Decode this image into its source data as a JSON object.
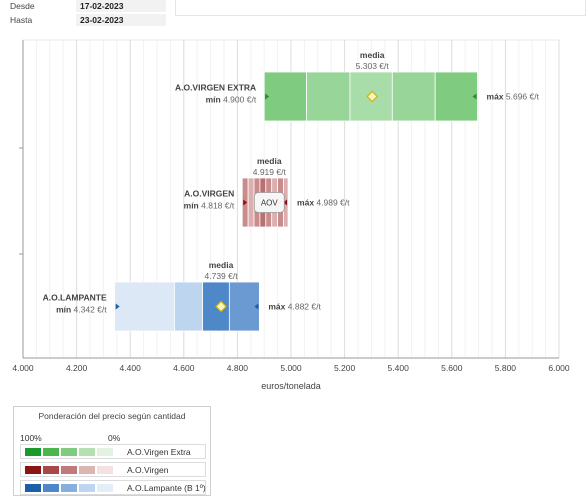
{
  "dates": {
    "from_label": "Desde",
    "from_value": "17-02-2023",
    "to_label": "Hasta",
    "to_value": "23-02-2023"
  },
  "chart_data": {
    "type": "bar",
    "orientation": "horizontal-range",
    "xlabel": "euros/tonelada",
    "xlim": [
      4000,
      6000
    ],
    "xticks": [
      "4.000",
      "4.200",
      "4.400",
      "4.600",
      "4.800",
      "5.000",
      "5.200",
      "5.400",
      "5.600",
      "5.800",
      "6.000"
    ],
    "grid": true,
    "series": [
      {
        "name": "A.O.VIRGEN EXTRA",
        "min": 4900,
        "max": 5696,
        "mean": 5303,
        "min_text": "4.900 €/t",
        "max_text": "5.696 €/t",
        "mean_text": "5.303 €/t",
        "segments": [
          4900,
          5058,
          5220,
          5378,
          5538,
          5696
        ],
        "colors": [
          "#7fcb7f",
          "#98d598",
          "#a8dca8",
          "#98d598",
          "#7fcb7f"
        ],
        "marker": "diamond",
        "badge": ""
      },
      {
        "name": "A.O.VIRGEN",
        "min": 4818,
        "max": 4989,
        "mean": 4919,
        "min_text": "4.818 €/t",
        "max_text": "4.989 €/t",
        "mean_text": "4.919 €/t",
        "segments": [
          4818,
          4840,
          4862,
          4884,
          4906,
          4928,
          4950,
          4972,
          4989
        ],
        "colors": [
          "#c98c8c",
          "#dcaeae",
          "#c98c8c",
          "#b97070",
          "#c98c8c",
          "#dcaeae",
          "#c98c8c",
          "#dcaeae"
        ],
        "marker": "badge",
        "badge": "AOV"
      },
      {
        "name": "A.O.LAMPANTE",
        "min": 4342,
        "max": 4882,
        "mean": 4739,
        "min_text": "4.342 €/t",
        "max_text": "4.882 €/t",
        "mean_text": "4.739 €/t",
        "segments": [
          4342,
          4565,
          4670,
          4770,
          4882
        ],
        "colors": [
          "#dce8f5",
          "#bdd5ee",
          "#4f88c8",
          "#6a9ad1"
        ],
        "marker": "diamond",
        "badge": ""
      }
    ],
    "labels": {
      "mean": "media",
      "min": "mín",
      "max": "máx"
    }
  },
  "legend": {
    "title": "Ponderación del precio según cantidad",
    "pct_high": "100%",
    "pct_low": "0%",
    "rows": [
      {
        "name": "A.O.Virgen Extra",
        "colors": [
          "#1a9a2a",
          "#4cb54c",
          "#7fcb7f",
          "#b4e0b4",
          "#e2f3e2"
        ]
      },
      {
        "name": "A.O.Virgen",
        "colors": [
          "#8b1515",
          "#a84848",
          "#c07a7a",
          "#ddb4b4",
          "#f2e2e2"
        ]
      },
      {
        "name": "A.O.Lampante (B 1º)",
        "colors": [
          "#1a5fa8",
          "#4f88c8",
          "#86afdc",
          "#bdd5ee",
          "#e4eef8"
        ]
      }
    ]
  }
}
